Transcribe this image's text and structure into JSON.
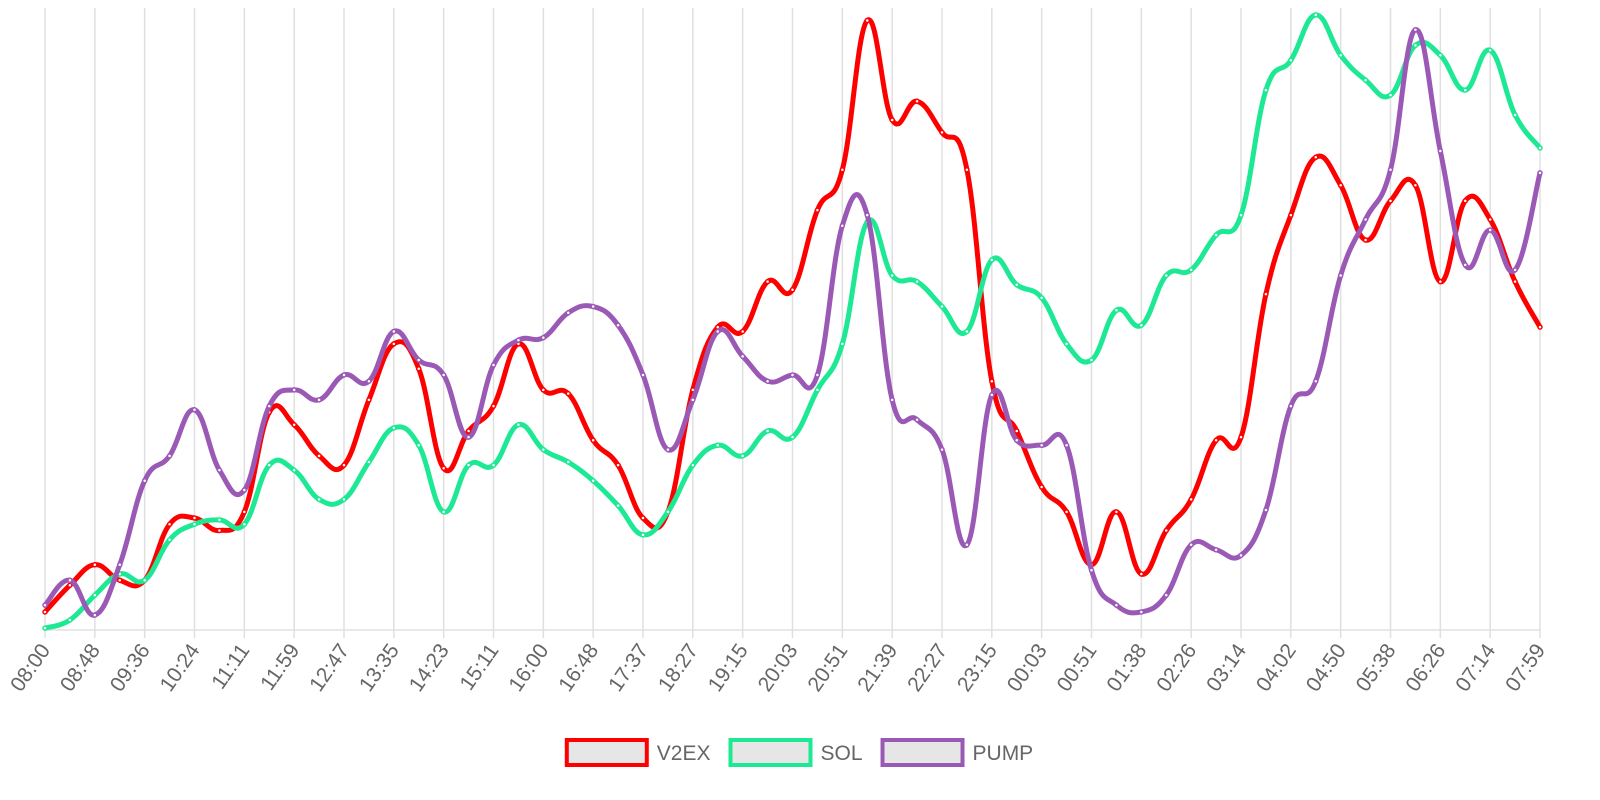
{
  "chart_data": {
    "type": "line",
    "categories": [
      "08:00",
      null,
      "08:48",
      null,
      "09:36",
      null,
      "10:24",
      null,
      "11:11",
      null,
      "11:59",
      null,
      "12:47",
      null,
      "13:35",
      null,
      "14:23",
      null,
      "15:11",
      null,
      "16:00",
      null,
      "16:48",
      null,
      "17:37",
      null,
      "18:27",
      null,
      "19:15",
      null,
      "20:03",
      null,
      "20:51",
      null,
      "21:39",
      null,
      "22:27",
      null,
      "23:15",
      null,
      "00:03",
      null,
      "00:51",
      null,
      "01:38",
      null,
      "02:26",
      null,
      "03:14",
      null,
      "04:02",
      null,
      "04:50",
      null,
      "05:38",
      null,
      "06:26",
      null,
      "07:14",
      null,
      "07:59"
    ],
    "series": [
      {
        "name": "V2EX",
        "color": "#ff0000",
        "values": [
          2.9,
          7.2,
          10.5,
          8,
          8,
          17,
          18,
          16,
          19,
          35,
          33,
          28,
          26.5,
          37,
          46,
          42,
          26,
          32,
          36,
          46,
          38.6,
          38,
          30.5,
          26.5,
          18,
          19,
          38.6,
          48.7,
          48,
          56,
          54.7,
          67.5,
          74,
          98,
          82,
          85,
          80,
          74,
          40,
          32,
          23,
          19,
          10.5,
          19,
          9,
          16,
          21,
          30.5,
          31,
          54,
          66.7,
          76,
          71.5,
          62.7,
          69,
          71.5,
          56,
          69,
          66,
          56,
          48.7
        ]
      },
      {
        "name": "SOL",
        "color": "#1de994",
        "values": [
          0.3,
          1.6,
          5.6,
          9,
          8,
          14.5,
          17,
          17.7,
          17,
          26.5,
          25.7,
          21,
          21,
          27,
          32.5,
          29.7,
          19,
          26.5,
          26.5,
          33,
          29,
          27,
          24,
          20,
          15.3,
          19,
          26.5,
          29.7,
          28,
          32,
          31,
          38.6,
          46,
          65.6,
          57,
          56,
          52,
          48,
          59.5,
          55.5,
          53.4,
          46,
          43.4,
          51.4,
          49,
          57,
          57.9,
          63.5,
          66.7,
          86.8,
          91.6,
          98.9,
          92.4,
          88.4,
          86,
          94,
          92.4,
          86.8,
          93.2,
          82.8,
          77.5
        ]
      },
      {
        "name": "PUMP",
        "color": "#9b59b6",
        "values": [
          4,
          8,
          2.4,
          10.5,
          24,
          28,
          35.4,
          25.7,
          22.5,
          36,
          38.6,
          37,
          41,
          40,
          48,
          43.4,
          41,
          31,
          42.6,
          46.6,
          47,
          51,
          52,
          49,
          41,
          29,
          37,
          48,
          44,
          40,
          41,
          41,
          65,
          66.7,
          37,
          33.8,
          29,
          13.7,
          37.8,
          30.5,
          29.7,
          29.7,
          9.6,
          4,
          2.9,
          5.6,
          13.7,
          12.9,
          12,
          19.3,
          36,
          40,
          57,
          66,
          74,
          96.5,
          77,
          58.7,
          64.3,
          57.9,
          73.5
        ]
      }
    ],
    "ylim": [
      0,
      100
    ],
    "grid": true,
    "legend": "bottom"
  }
}
